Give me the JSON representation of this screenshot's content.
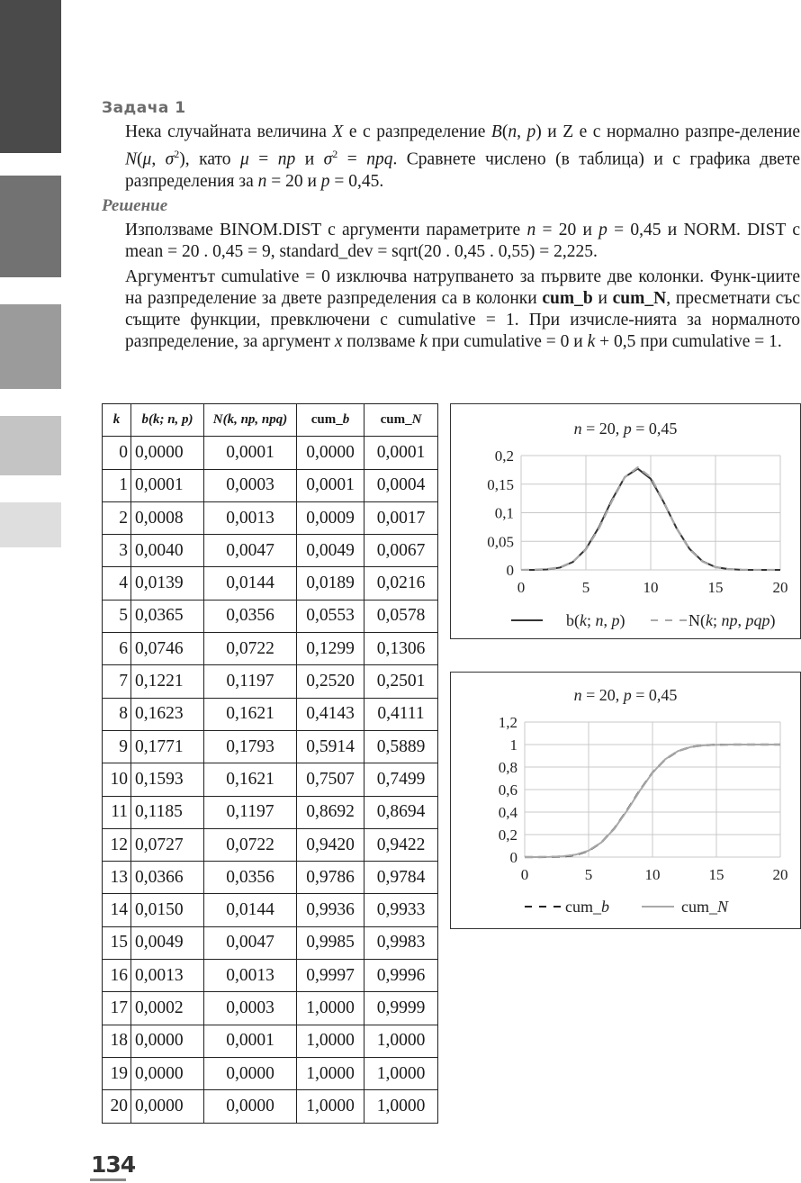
{
  "heading": "Задача 1",
  "task": {
    "t1": "Нека случайната величина ",
    "t2": "X",
    "t3": " е с разпределение ",
    "t4": "B",
    "t5": "(",
    "t6": "n",
    "t7": ", ",
    "t8": "p",
    "t9": ") и Z е с нормално разпре-деление ",
    "t10": "N",
    "t11": "(",
    "t12": "μ",
    "t13": ", ",
    "t14": "σ",
    "t15": "2",
    "t16": "), като ",
    "t17": "μ",
    "t18": " = ",
    "t19": "np",
    "t20": " и ",
    "t21": "σ",
    "t22": "2",
    "t23": " = ",
    "t24": "npq",
    "t25": ". Сравнете числено (в таблица) и с графика двете разпределения за ",
    "t26": "n",
    "t27": " = 20 и ",
    "t28": "p",
    "t29": " = 0,45."
  },
  "solution_heading": "Решение",
  "solution": {
    "p1a": "Използваме BINOM.DIST с аргументи параметрите  ",
    "p1b": "n",
    "p1c": " = 20 и ",
    "p1d": "p",
    "p1e": " = 0,45 и NORM. DIST с mean = 20 . 0,45 = 9, standard_dev = sqrt(20 . 0,45 . 0,55) = 2,225.",
    "p2a": "Аргументът cumulative = 0 изключва натрупването за първите две колонки. Функ-циите на разпределение за двете разпределения са в колонки ",
    "p2b": "cum_b",
    "p2c": " и ",
    "p2d": "cum_N",
    "p2e": ", пресметнати със същите функции, превключени с cumulative = 1. При изчисле-нията за нормалното разпределение, за аргумент ",
    "p2f": "x",
    "p2g": " ползваме ",
    "p2h": "k",
    "p2i": " при cumulative = 0 и ",
    "p2j": "k",
    "p2k": " + 0,5 при cumulative = 1."
  },
  "table": {
    "headers": {
      "k": "k",
      "b": {
        "a": "b(",
        "b": "k",
        "c": "; ",
        "d": "n",
        "e": ", ",
        "f": "p",
        "g": ")"
      },
      "n": {
        "a": "N(",
        "b": "k",
        "c": ", ",
        "d": "np",
        "e": ", ",
        "f": "npq",
        "g": ")"
      },
      "cb": {
        "a": "cum_",
        "b": "b"
      },
      "cn": {
        "a": "cum_",
        "b": "N"
      }
    },
    "rows": [
      [
        "0",
        "0,0000",
        "0,0001",
        "0,0000",
        "0,0001"
      ],
      [
        "1",
        "0,0001",
        "0,0003",
        "0,0001",
        "0,0004"
      ],
      [
        "2",
        "0,0008",
        "0,0013",
        "0,0009",
        "0,0017"
      ],
      [
        "3",
        "0,0040",
        "0,0047",
        "0,0049",
        "0,0067"
      ],
      [
        "4",
        "0,0139",
        "0,0144",
        "0,0189",
        "0,0216"
      ],
      [
        "5",
        "0,0365",
        "0,0356",
        "0,0553",
        "0,0578"
      ],
      [
        "6",
        "0,0746",
        "0,0722",
        "0,1299",
        "0,1306"
      ],
      [
        "7",
        "0,1221",
        "0,1197",
        "0,2520",
        "0,2501"
      ],
      [
        "8",
        "0,1623",
        "0,1621",
        "0,4143",
        "0,4111"
      ],
      [
        "9",
        "0,1771",
        "0,1793",
        "0,5914",
        "0,5889"
      ],
      [
        "10",
        "0,1593",
        "0,1621",
        "0,7507",
        "0,7499"
      ],
      [
        "11",
        "0,1185",
        "0,1197",
        "0,8692",
        "0,8694"
      ],
      [
        "12",
        "0,0727",
        "0,0722",
        "0,9420",
        "0,9422"
      ],
      [
        "13",
        "0,0366",
        "0,0356",
        "0,9786",
        "0,9784"
      ],
      [
        "14",
        "0,0150",
        "0,0144",
        "0,9936",
        "0,9933"
      ],
      [
        "15",
        "0,0049",
        "0,0047",
        "0,9985",
        "0,9983"
      ],
      [
        "16",
        "0,0013",
        "0,0013",
        "0,9997",
        "0,9996"
      ],
      [
        "17",
        "0,0002",
        "0,0003",
        "1,0000",
        "0,9999"
      ],
      [
        "18",
        "0,0000",
        "0,0001",
        "1,0000",
        "1,0000"
      ],
      [
        "19",
        "0,0000",
        "0,0000",
        "1,0000",
        "1,0000"
      ],
      [
        "20",
        "0,0000",
        "0,0000",
        "1,0000",
        "1,0000"
      ]
    ]
  },
  "chart_data": [
    {
      "type": "line",
      "title": {
        "a": "n",
        "b": " = 20, ",
        "c": "p",
        "d": " = 0,45"
      },
      "x": [
        0,
        1,
        2,
        3,
        4,
        5,
        6,
        7,
        8,
        9,
        10,
        11,
        12,
        13,
        14,
        15,
        16,
        17,
        18,
        19,
        20
      ],
      "xlim": [
        0,
        20
      ],
      "ylim": [
        0,
        0.2
      ],
      "xticks": [
        "0",
        "5",
        "10",
        "15",
        "20"
      ],
      "yticks": [
        "0",
        "0,05",
        "0,1",
        "0,15",
        "0,2"
      ],
      "ytick_values": [
        0,
        0.05,
        0.1,
        0.15,
        0.2
      ],
      "grid": true,
      "legend_position": "bottom",
      "series": [
        {
          "name": {
            "a": "b(",
            "b": "k",
            "c": "; ",
            "d": "n",
            "e": ", ",
            "f": "p",
            "g": ")"
          },
          "style": "solid",
          "color": "#333333",
          "values": [
            0,
            0.0001,
            0.0008,
            0.004,
            0.0139,
            0.0365,
            0.0746,
            0.1221,
            0.1623,
            0.1771,
            0.1593,
            0.1185,
            0.0727,
            0.0366,
            0.015,
            0.0049,
            0.0013,
            0.0002,
            0,
            0,
            0
          ]
        },
        {
          "name": {
            "a": "N(",
            "b": "k",
            "c": "; ",
            "d": "np",
            "e": ", ",
            "f": "pqp",
            "g": ")"
          },
          "style": "dashed",
          "color": "#a8a8a8",
          "values": [
            0.0001,
            0.0003,
            0.0013,
            0.0047,
            0.0144,
            0.0356,
            0.0722,
            0.1197,
            0.1621,
            0.1793,
            0.1621,
            0.1197,
            0.0722,
            0.0356,
            0.0144,
            0.0047,
            0.0013,
            0.0003,
            0.0001,
            0,
            0
          ]
        }
      ]
    },
    {
      "type": "line",
      "title": {
        "a": "n",
        "b": " = 20, ",
        "c": "p",
        "d": " = 0,45"
      },
      "x": [
        0,
        1,
        2,
        3,
        4,
        5,
        6,
        7,
        8,
        9,
        10,
        11,
        12,
        13,
        14,
        15,
        16,
        17,
        18,
        19,
        20
      ],
      "xlim": [
        0,
        20
      ],
      "ylim": [
        0,
        1.2
      ],
      "xticks": [
        "0",
        "5",
        "10",
        "15",
        "20"
      ],
      "yticks": [
        "0",
        "0,2",
        "0,4",
        "0,6",
        "0,8",
        "1",
        "1,2"
      ],
      "ytick_values": [
        0,
        0.2,
        0.4,
        0.6,
        0.8,
        1,
        1.2
      ],
      "grid": true,
      "legend_position": "bottom",
      "series": [
        {
          "name": {
            "a": "cum_",
            "b": "b"
          },
          "style": "dashed",
          "color": "#222222",
          "values": [
            0,
            0.0001,
            0.0009,
            0.0049,
            0.0189,
            0.0553,
            0.1299,
            0.252,
            0.4143,
            0.5914,
            0.7507,
            0.8692,
            0.942,
            0.9786,
            0.9936,
            0.9985,
            0.9997,
            1,
            1,
            1,
            1
          ]
        },
        {
          "name": {
            "a": "cum_",
            "b": "N"
          },
          "style": "solid",
          "color": "#a8a8a8",
          "values": [
            0.0001,
            0.0004,
            0.0017,
            0.0067,
            0.0216,
            0.0578,
            0.1306,
            0.2501,
            0.4111,
            0.5889,
            0.7499,
            0.8694,
            0.9422,
            0.9784,
            0.9933,
            0.9983,
            0.9996,
            0.9999,
            1,
            1,
            1
          ]
        }
      ]
    }
  ],
  "page_number": "134"
}
